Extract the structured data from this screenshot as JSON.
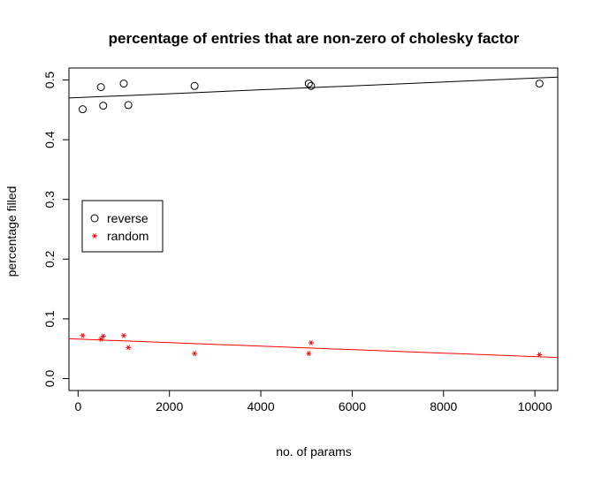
{
  "chart_data": {
    "type": "scatter",
    "title": "percentage of entries that are non-zero of cholesky factor",
    "xlabel": "no. of params",
    "ylabel": "percentage filled",
    "xlim": [
      -200,
      10500
    ],
    "ylim": [
      -0.02,
      0.52
    ],
    "x_ticks": [
      0,
      2000,
      4000,
      6000,
      8000,
      10000
    ],
    "y_ticks": [
      0.0,
      0.1,
      0.2,
      0.3,
      0.4,
      0.5
    ],
    "x_tick_labels": [
      "0",
      "2000",
      "4000",
      "6000",
      "8000",
      "10000"
    ],
    "y_tick_labels": [
      "0.0",
      "0.1",
      "0.2",
      "0.3",
      "0.4",
      "0.5"
    ],
    "legend_position": "left-middle",
    "series": [
      {
        "name": "reverse",
        "marker": "o",
        "color": "#000000",
        "points": [
          {
            "x": 100,
            "y": 0.451
          },
          {
            "x": 500,
            "y": 0.488
          },
          {
            "x": 550,
            "y": 0.457
          },
          {
            "x": 1000,
            "y": 0.494
          },
          {
            "x": 1100,
            "y": 0.458
          },
          {
            "x": 2550,
            "y": 0.49
          },
          {
            "x": 5050,
            "y": 0.494
          },
          {
            "x": 5100,
            "y": 0.49
          },
          {
            "x": 10100,
            "y": 0.494
          }
        ],
        "fit_line": {
          "x": [
            -200,
            10500
          ],
          "y": [
            0.4698,
            0.5048
          ]
        }
      },
      {
        "name": "random",
        "marker": "*",
        "color": "#ff0000",
        "points": [
          {
            "x": 100,
            "y": 0.072
          },
          {
            "x": 500,
            "y": 0.066
          },
          {
            "x": 550,
            "y": 0.071
          },
          {
            "x": 1000,
            "y": 0.072
          },
          {
            "x": 1100,
            "y": 0.052
          },
          {
            "x": 2550,
            "y": 0.042
          },
          {
            "x": 5050,
            "y": 0.042
          },
          {
            "x": 5100,
            "y": 0.06
          },
          {
            "x": 10100,
            "y": 0.04
          }
        ],
        "fit_line": {
          "x": [
            -200,
            10500
          ],
          "y": [
            0.0667,
            0.0353
          ]
        }
      }
    ]
  }
}
